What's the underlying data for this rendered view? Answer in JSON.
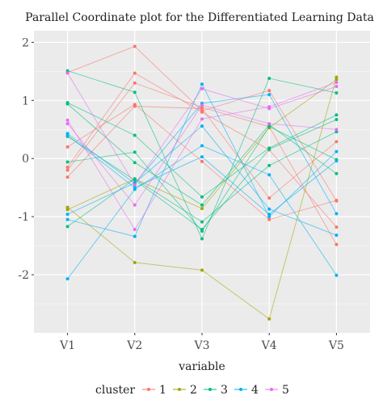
{
  "chart_data": {
    "type": "line",
    "title": "Parallel Coordinate plot for the Differentiated Learning Data",
    "xlabel": "variable",
    "ylabel": "",
    "categories": [
      "V1",
      "V2",
      "V3",
      "V4",
      "V5"
    ],
    "ylim": [
      -3.0,
      2.2
    ],
    "yticks": [
      -2,
      -1,
      0,
      1,
      2
    ],
    "grid": true,
    "legend": {
      "title": "cluster",
      "placement": "bottom",
      "labels": [
        "1",
        "2",
        "3",
        "4",
        "5"
      ]
    },
    "cluster_colors": {
      "1": "#F8766D",
      "2": "#A3A500",
      "3": "#00BF7D",
      "4": "#00B0F6",
      "5": "#E76BF3"
    },
    "series": [
      {
        "cluster": "1",
        "values": [
          1.48,
          1.93,
          0.82,
          1.17,
          -0.73
        ]
      },
      {
        "cluster": "1",
        "values": [
          -0.2,
          1.3,
          0.88,
          0.55,
          -1.48
        ]
      },
      {
        "cluster": "1",
        "values": [
          0.2,
          0.93,
          -0.05,
          -1.05,
          -0.72
        ]
      },
      {
        "cluster": "1",
        "values": [
          -0.32,
          0.9,
          0.86,
          -0.68,
          0.29
        ]
      },
      {
        "cluster": "1",
        "values": [
          -0.15,
          1.47,
          0.8,
          0.15,
          -1.18
        ]
      },
      {
        "cluster": "2",
        "values": [
          -0.84,
          -1.79,
          -1.92,
          -2.76,
          1.4
        ]
      },
      {
        "cluster": "2",
        "values": [
          -0.88,
          -0.35,
          -0.86,
          0.53,
          1.36
        ]
      },
      {
        "cluster": "3",
        "values": [
          1.51,
          1.14,
          -1.38,
          1.38,
          1.13
        ]
      },
      {
        "cluster": "3",
        "values": [
          0.96,
          0.4,
          -0.66,
          0.18,
          0.75
        ]
      },
      {
        "cluster": "3",
        "values": [
          -0.06,
          0.11,
          -1.25,
          0.55,
          -0.02
        ]
      },
      {
        "cluster": "3",
        "values": [
          -1.17,
          -0.35,
          -1.09,
          -0.12,
          0.46
        ]
      },
      {
        "cluster": "3",
        "values": [
          0.94,
          -0.07,
          -0.8,
          0.58,
          -0.26
        ]
      },
      {
        "cluster": "3",
        "values": [
          0.38,
          -0.37,
          -1.22,
          0.16,
          0.67
        ]
      },
      {
        "cluster": "4",
        "values": [
          -2.07,
          -0.53,
          0.22,
          -0.28,
          -2.01
        ]
      },
      {
        "cluster": "4",
        "values": [
          -1.05,
          -1.34,
          1.28,
          -1.0,
          0.12
        ]
      },
      {
        "cluster": "4",
        "values": [
          0.43,
          -0.43,
          0.95,
          1.1,
          -0.95
        ]
      },
      {
        "cluster": "4",
        "values": [
          -0.96,
          -0.42,
          0.56,
          -0.87,
          -1.32
        ]
      },
      {
        "cluster": "4",
        "values": [
          0.4,
          -0.5,
          0.03,
          -0.96,
          -0.04
        ]
      },
      {
        "cluster": "5",
        "values": [
          0.66,
          -1.22,
          0.68,
          0.89,
          1.31
        ]
      },
      {
        "cluster": "5",
        "values": [
          0.6,
          -0.8,
          0.92,
          0.6,
          0.5
        ]
      },
      {
        "cluster": "5",
        "values": [
          1.47,
          -0.45,
          1.2,
          0.86,
          1.24
        ]
      }
    ]
  }
}
